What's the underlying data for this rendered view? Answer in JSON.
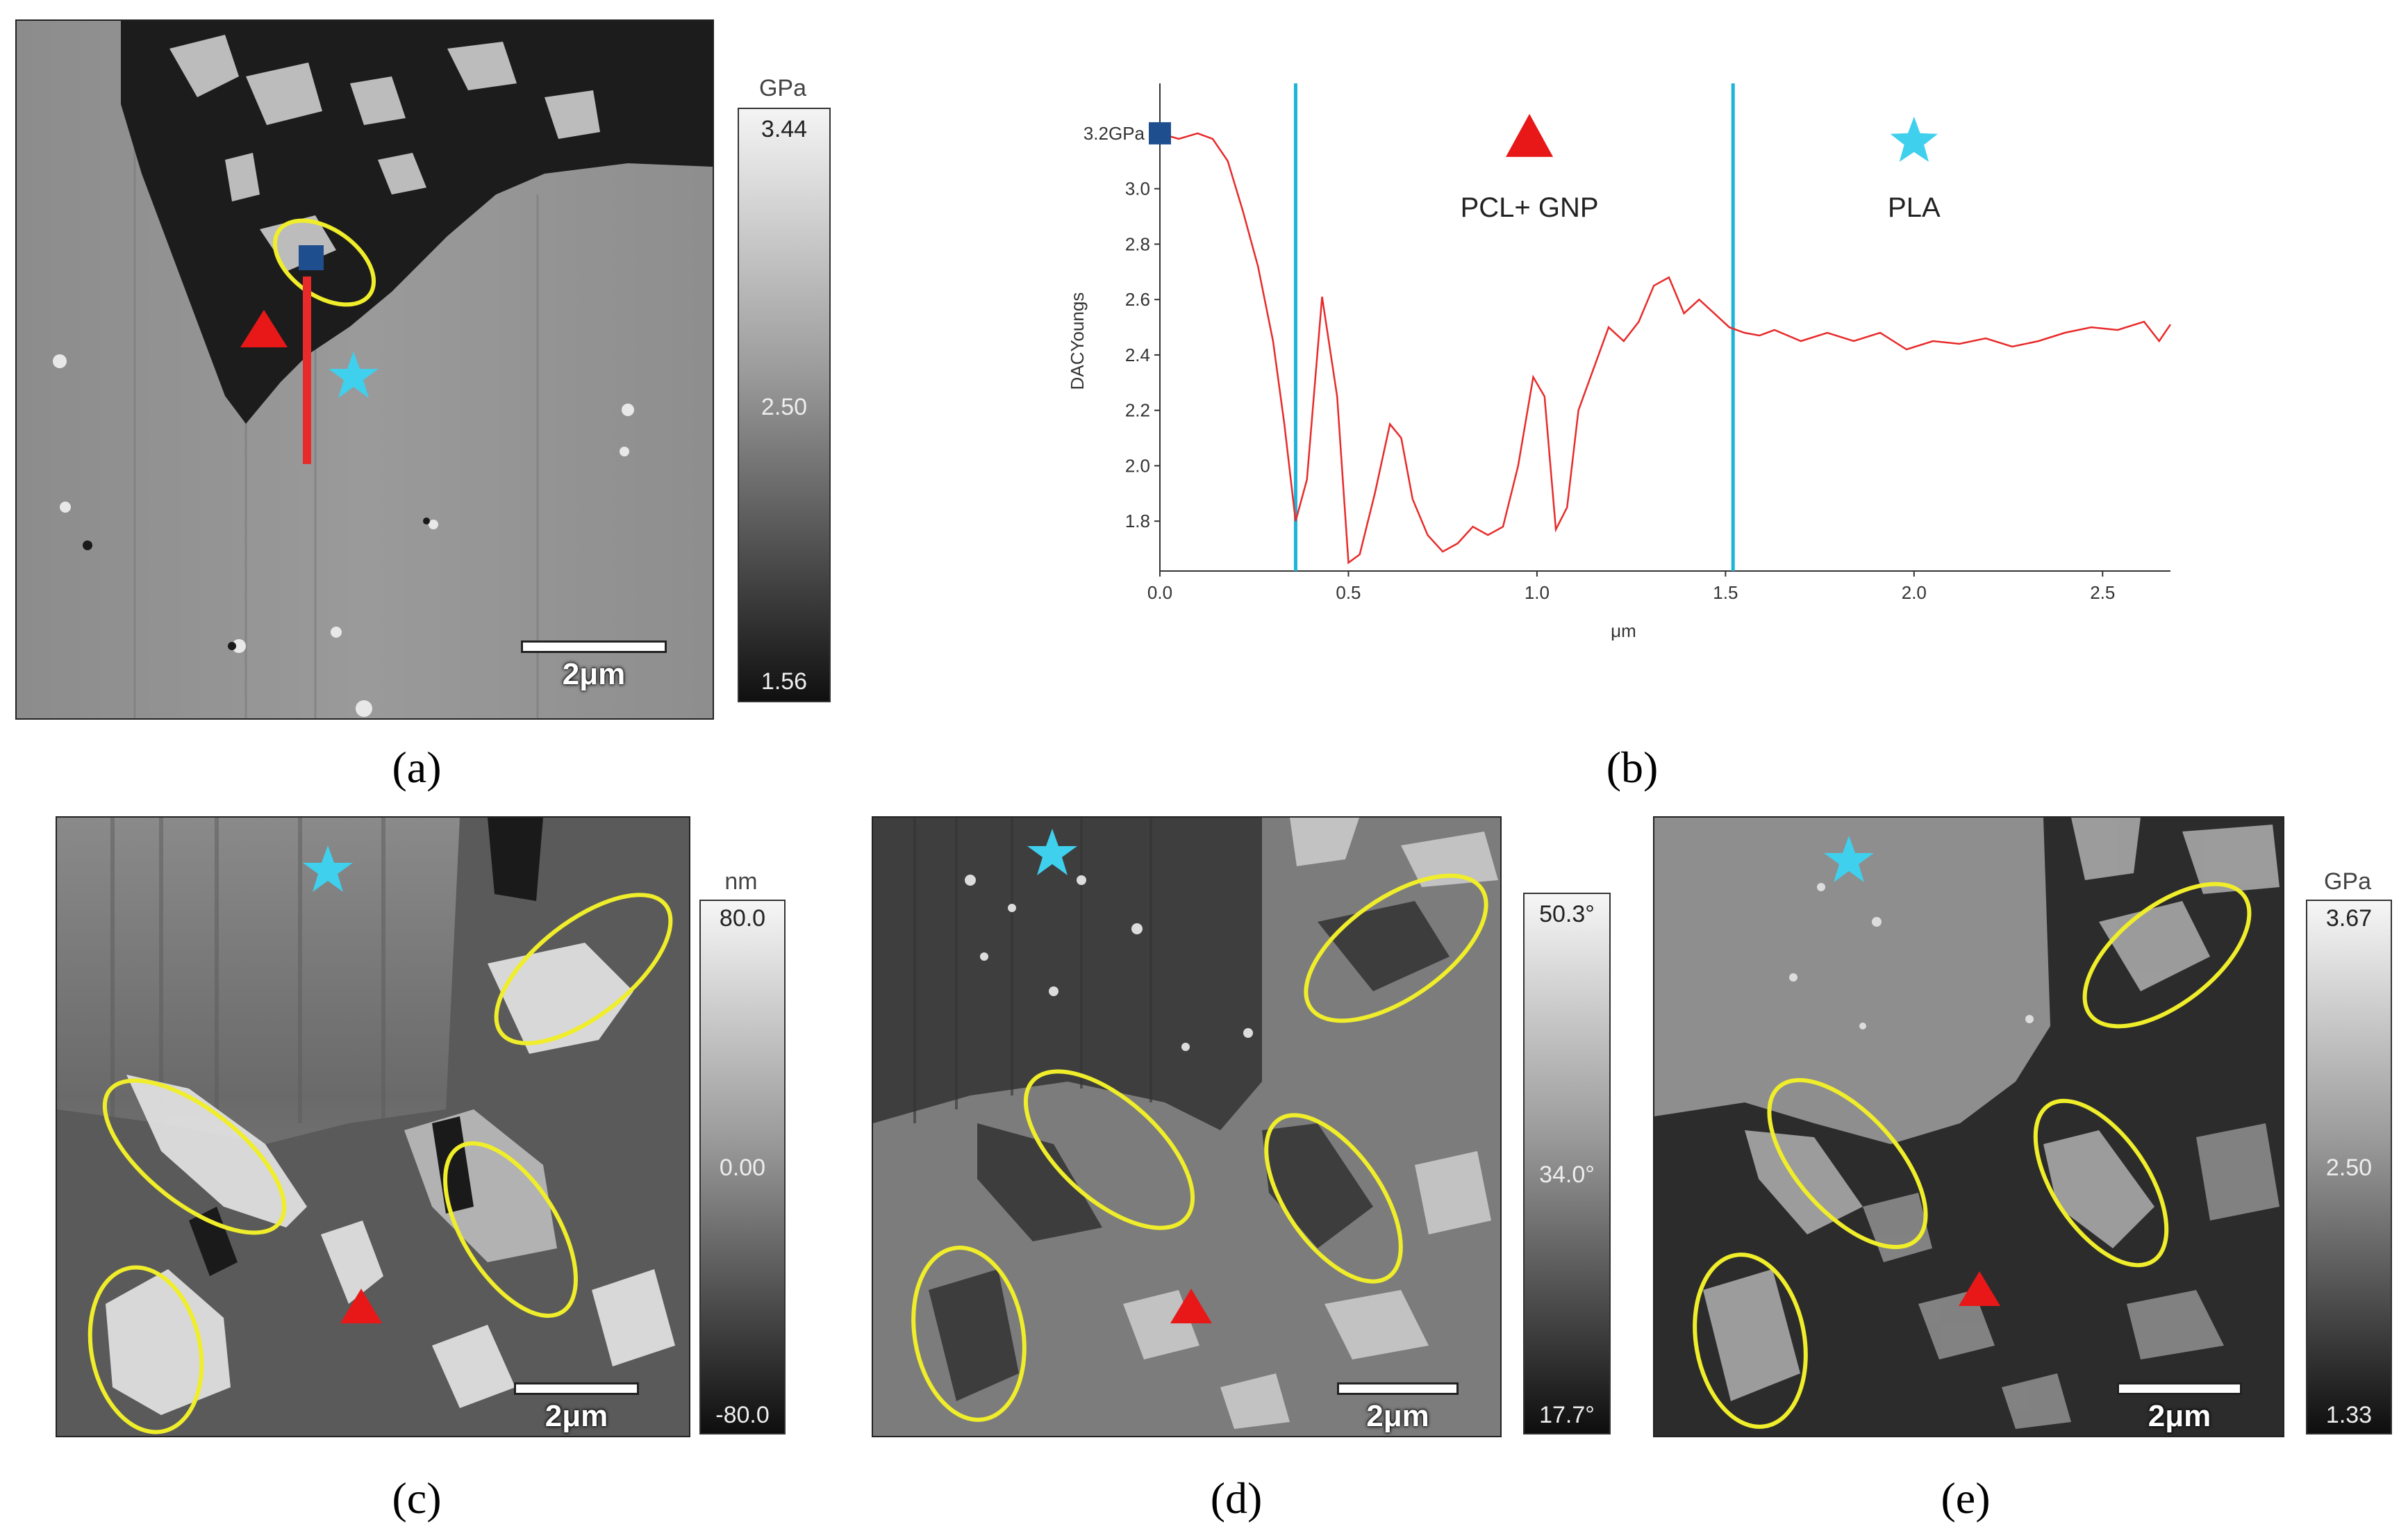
{
  "panels": {
    "a": {
      "caption": "(a)",
      "colorbar": {
        "unit": "GPa",
        "max": "3.44",
        "mid": "2.50",
        "min": "1.56"
      },
      "scalebar": "2μm"
    },
    "c": {
      "caption": "(c)",
      "colorbar": {
        "unit": "nm",
        "max": "80.0",
        "mid": "0.00",
        "min": "-80.0"
      },
      "scalebar": "2μm"
    },
    "d": {
      "caption": "(d)",
      "colorbar": {
        "unit": "",
        "max": "50.3°",
        "mid": "34.0°",
        "min": "17.7°"
      },
      "scalebar": "2μm"
    },
    "e": {
      "caption": "(e)",
      "colorbar": {
        "unit": "GPa",
        "max": "3.67",
        "mid": "2.50",
        "min": "1.33"
      },
      "scalebar": "2μm"
    }
  },
  "chart_panel": {
    "caption": "(b)"
  },
  "colors": {
    "profile_line": "#e82a2a",
    "boundary": "#1fb3d8",
    "marker": "#1f4e8f",
    "ellipse": "#f0ee2a",
    "triangle": "#e81818",
    "star": "#3fd0ee"
  },
  "chart_data": {
    "type": "line",
    "xlabel": "μm",
    "ylabel": "DACYoungs",
    "xlim": [
      0,
      2.68
    ],
    "ylim": [
      1.62,
      3.28
    ],
    "xticks": [
      "0.0",
      "0.5",
      "1.0",
      "1.5",
      "2.0",
      "2.5"
    ],
    "yticks": [
      "1.8",
      "2.0",
      "2.2",
      "2.4",
      "2.6",
      "2.8",
      "3.0"
    ],
    "start_label": "3.2GPa",
    "boundaries": [
      0.36,
      1.52
    ],
    "annotations": [
      {
        "text": "GNP",
        "marker": "ellipse",
        "x": 0.17,
        "y": 3.79
      },
      {
        "text": "PCL+ GNP",
        "marker": "triangle",
        "x": 0.98,
        "y": 3.17
      },
      {
        "text": "PLA",
        "marker": "star",
        "x": 2.0,
        "y": 3.17
      }
    ],
    "series": [
      {
        "x": [
          0.0,
          0.05,
          0.1,
          0.14,
          0.18,
          0.22,
          0.26,
          0.3,
          0.33,
          0.36,
          0.39,
          0.43,
          0.47,
          0.5,
          0.53,
          0.57,
          0.61,
          0.64,
          0.67,
          0.71,
          0.75,
          0.79,
          0.83,
          0.87,
          0.91,
          0.95,
          0.99,
          1.02,
          1.05,
          1.08,
          1.11,
          1.15,
          1.19,
          1.23,
          1.27,
          1.31,
          1.35,
          1.39,
          1.43,
          1.47,
          1.51,
          1.55,
          1.59,
          1.63,
          1.7,
          1.77,
          1.84,
          1.91,
          1.98,
          2.05,
          2.12,
          2.19,
          2.26,
          2.33,
          2.4,
          2.47,
          2.54,
          2.61,
          2.65,
          2.68
        ],
        "y": [
          3.2,
          3.18,
          3.2,
          3.18,
          3.1,
          2.92,
          2.72,
          2.45,
          2.15,
          1.8,
          1.95,
          2.61,
          2.25,
          1.65,
          1.68,
          1.9,
          2.15,
          2.1,
          1.88,
          1.75,
          1.69,
          1.72,
          1.78,
          1.75,
          1.78,
          2.0,
          2.32,
          2.25,
          1.77,
          1.85,
          2.2,
          2.35,
          2.5,
          2.45,
          2.52,
          2.65,
          2.68,
          2.55,
          2.6,
          2.55,
          2.5,
          2.48,
          2.47,
          2.49,
          2.45,
          2.48,
          2.45,
          2.48,
          2.42,
          2.45,
          2.44,
          2.46,
          2.43,
          2.45,
          2.48,
          2.5,
          2.49,
          2.52,
          2.45,
          2.51
        ]
      }
    ]
  }
}
